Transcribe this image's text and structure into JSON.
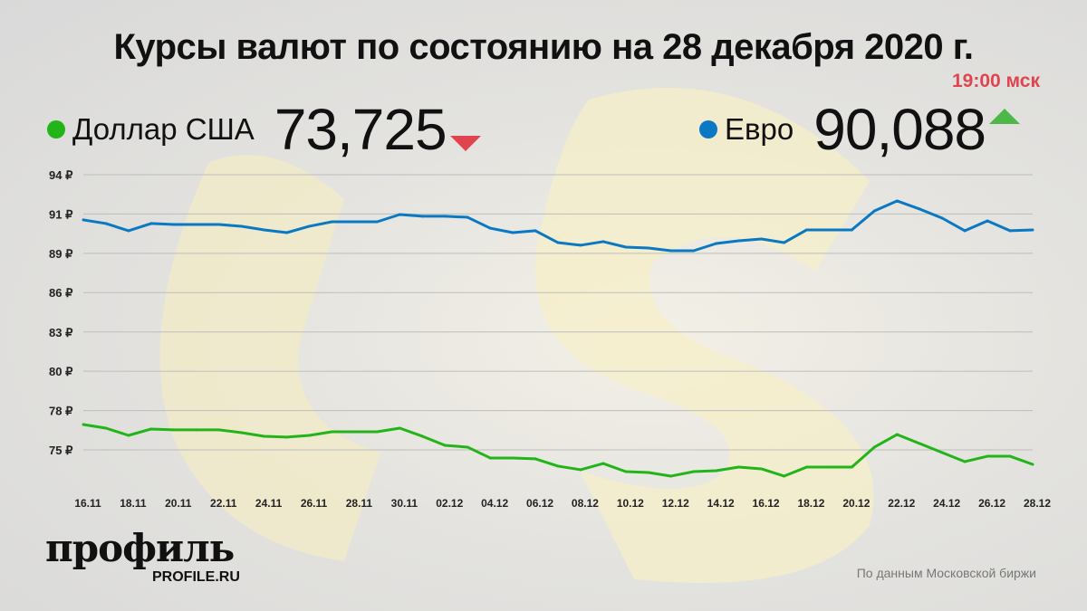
{
  "header": {
    "title": "Курсы валют по состоянию на 28 декабря 2020 г.",
    "time": "19:00 мск"
  },
  "legend": [
    {
      "name": "Доллар США",
      "value": "73,725",
      "trend": "down",
      "color": "#22b418"
    },
    {
      "name": "Евро",
      "value": "90,088",
      "trend": "up",
      "color": "#0a78c2"
    }
  ],
  "colors": {
    "up": "#4cb848",
    "down": "#e0454f",
    "grid": "#bdbdbd"
  },
  "chart_data": {
    "type": "line",
    "ylim": [
      73,
      94
    ],
    "yticks": [
      {
        "v": 94,
        "label": "94 ₽"
      },
      {
        "v": 91.29,
        "label": "91 ₽"
      },
      {
        "v": 88.57,
        "label": "89 ₽"
      },
      {
        "v": 85.86,
        "label": "86 ₽"
      },
      {
        "v": 83.14,
        "label": "83 ₽"
      },
      {
        "v": 80.43,
        "label": "80 ₽"
      },
      {
        "v": 77.71,
        "label": "78 ₽"
      },
      {
        "v": 75,
        "label": "75 ₽"
      }
    ],
    "xtick_labels": [
      "16.11",
      "18.11",
      "20.11",
      "22.11",
      "24.11",
      "26.11",
      "28.11",
      "30.11",
      "02.12",
      "04.12",
      "06.12",
      "08.12",
      "10.12",
      "12.12",
      "14.12",
      "16.12",
      "18.12",
      "20.12",
      "22.12",
      "24.12",
      "26.12",
      "28.12"
    ],
    "x": [
      "16.11",
      "17.11",
      "18.11",
      "19.11",
      "20.11",
      "21.11",
      "22.11",
      "23.11",
      "24.11",
      "25.11",
      "26.11",
      "27.11",
      "28.11",
      "29.11",
      "30.11",
      "01.12",
      "02.12",
      "03.12",
      "04.12",
      "05.12",
      "06.12",
      "07.12",
      "08.12",
      "09.12",
      "10.12",
      "11.12",
      "12.12",
      "13.12",
      "14.12",
      "15.12",
      "16.12",
      "17.12",
      "18.12",
      "19.12",
      "20.12",
      "21.12",
      "22.12",
      "23.12",
      "24.12",
      "25.12",
      "26.12",
      "27.12",
      "28.12"
    ],
    "grid": true,
    "series": [
      {
        "name": "Евро",
        "color": "#0a78c2",
        "values": [
          90.88,
          90.63,
          90.13,
          90.63,
          90.56,
          90.56,
          90.56,
          90.44,
          90.19,
          90.0,
          90.44,
          90.75,
          90.75,
          90.75,
          91.25,
          91.13,
          91.13,
          91.06,
          90.31,
          90.0,
          90.13,
          89.31,
          89.13,
          89.38,
          89.0,
          88.94,
          88.75,
          88.75,
          89.25,
          89.44,
          89.56,
          89.31,
          90.19,
          90.19,
          90.19,
          91.5,
          92.19,
          91.63,
          91.0,
          90.13,
          90.81,
          90.13,
          90.19
        ]
      },
      {
        "name": "Доллар США",
        "color": "#22b418",
        "values": [
          76.75,
          76.5,
          76.0,
          76.44,
          76.38,
          76.38,
          76.38,
          76.19,
          75.94,
          75.88,
          76.0,
          76.25,
          76.25,
          76.25,
          76.5,
          75.94,
          75.31,
          75.19,
          74.44,
          74.44,
          74.38,
          73.88,
          73.63,
          74.06,
          73.5,
          73.44,
          73.19,
          73.5,
          73.56,
          73.81,
          73.69,
          73.19,
          73.81,
          73.81,
          73.81,
          75.19,
          76.06,
          75.44,
          74.81,
          74.19,
          74.56,
          74.56,
          74.0
        ]
      }
    ]
  },
  "footer": {
    "logo": "профиль",
    "logo_sub": "PROFILE.RU",
    "source": "По данным Московской биржи"
  }
}
